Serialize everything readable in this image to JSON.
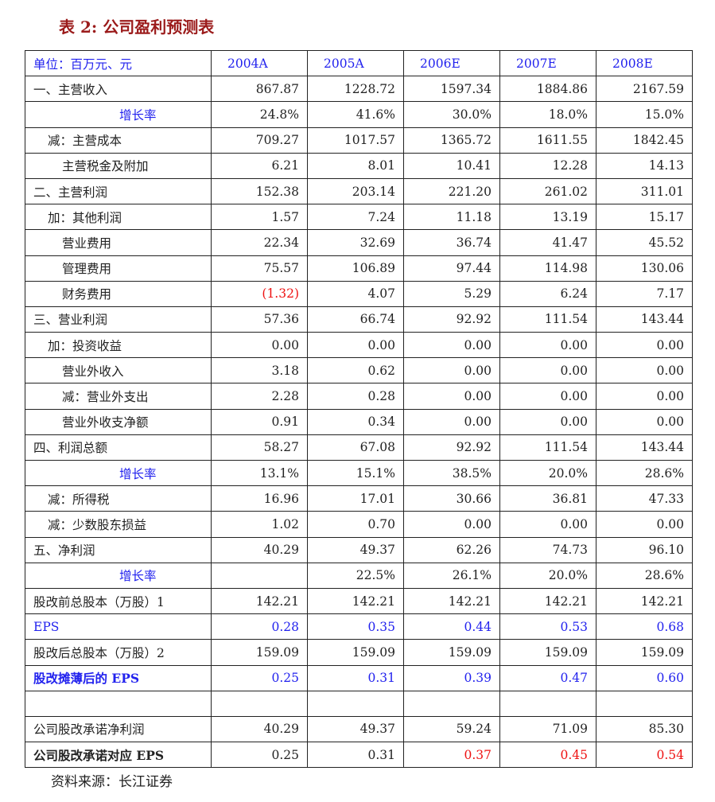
{
  "title": "表 2:  公司盈利预测表",
  "header": {
    "unit_label": "单位：百万元、元",
    "years": [
      "2004A",
      "2005A",
      "2006E",
      "2007E",
      "2008E"
    ]
  },
  "rows": [
    {
      "label": "一、主营收入",
      "indent": 0,
      "values": [
        "867.87",
        "1228.72",
        "1597.34",
        "1884.86",
        "2167.59"
      ]
    },
    {
      "label": "增长率",
      "indent": "g",
      "values": [
        "24.8%",
        "41.6%",
        "30.0%",
        "18.0%",
        "15.0%"
      ]
    },
    {
      "label": "减：主营成本",
      "indent": 1,
      "values": [
        "709.27",
        "1017.57",
        "1365.72",
        "1611.55",
        "1842.45"
      ]
    },
    {
      "label": "主营税金及附加",
      "indent": 2,
      "values": [
        "6.21",
        "8.01",
        "10.41",
        "12.28",
        "14.13"
      ]
    },
    {
      "label": "二、主营利润",
      "indent": 0,
      "values": [
        "152.38",
        "203.14",
        "221.20",
        "261.02",
        "311.01"
      ]
    },
    {
      "label": "加：其他利润",
      "indent": 1,
      "values": [
        "1.57",
        "7.24",
        "11.18",
        "13.19",
        "15.17"
      ]
    },
    {
      "label": "营业费用",
      "indent": 2,
      "values": [
        "22.34",
        "32.69",
        "36.74",
        "41.47",
        "45.52"
      ]
    },
    {
      "label": "管理费用",
      "indent": 2,
      "values": [
        "75.57",
        "106.89",
        "97.44",
        "114.98",
        "130.06"
      ]
    },
    {
      "label": "财务费用",
      "indent": 2,
      "values": [
        "(1.32)",
        "4.07",
        "5.29",
        "6.24",
        "7.17"
      ],
      "value_colors": [
        "red",
        "",
        "",
        "",
        ""
      ]
    },
    {
      "label": "三、营业利润",
      "indent": 0,
      "values": [
        "57.36",
        "66.74",
        "92.92",
        "111.54",
        "143.44"
      ]
    },
    {
      "label": "加：投资收益",
      "indent": 1,
      "values": [
        "0.00",
        "0.00",
        "0.00",
        "0.00",
        "0.00"
      ]
    },
    {
      "label": "营业外收入",
      "indent": 2,
      "values": [
        "3.18",
        "0.62",
        "0.00",
        "0.00",
        "0.00"
      ]
    },
    {
      "label": "减：营业外支出",
      "indent": 2,
      "values": [
        "2.28",
        "0.28",
        "0.00",
        "0.00",
        "0.00"
      ]
    },
    {
      "label": "营业外收支净额",
      "indent": 2,
      "values": [
        "0.91",
        "0.34",
        "0.00",
        "0.00",
        "0.00"
      ]
    },
    {
      "label": "四、利润总额",
      "indent": 0,
      "values": [
        "58.27",
        "67.08",
        "92.92",
        "111.54",
        "143.44"
      ]
    },
    {
      "label": "增长率",
      "indent": "g",
      "values": [
        "13.1%",
        "15.1%",
        "38.5%",
        "20.0%",
        "28.6%"
      ]
    },
    {
      "label": "减：所得税",
      "indent": 1,
      "values": [
        "16.96",
        "17.01",
        "30.66",
        "36.81",
        "47.33"
      ]
    },
    {
      "label": "减：少数股东损益",
      "indent": 1,
      "values": [
        "1.02",
        "0.70",
        "0.00",
        "0.00",
        "0.00"
      ]
    },
    {
      "label": "五、净利润",
      "indent": 0,
      "values": [
        "40.29",
        "49.37",
        "62.26",
        "74.73",
        "96.10"
      ]
    },
    {
      "label": "增长率",
      "indent": "g",
      "values": [
        "",
        "22.5%",
        "26.1%",
        "20.0%",
        "28.6%"
      ]
    },
    {
      "label": "股改前总股本（万股）1",
      "indent": 0,
      "values": [
        "142.21",
        "142.21",
        "142.21",
        "142.21",
        "142.21"
      ]
    },
    {
      "label": "EPS",
      "indent": 0,
      "style": "blue",
      "values": [
        "0.28",
        "0.35",
        "0.44",
        "0.53",
        "0.68"
      ]
    },
    {
      "label": "股改后总股本（万股）2",
      "indent": 0,
      "values": [
        "159.09",
        "159.09",
        "159.09",
        "159.09",
        "159.09"
      ]
    },
    {
      "label": "股改摊薄后的 EPS",
      "indent": 0,
      "style": "blue bold",
      "values": [
        "0.25",
        "0.31",
        "0.39",
        "0.47",
        "0.60"
      ]
    },
    {
      "label": "",
      "indent": 0,
      "values": [
        "",
        "",
        "",
        "",
        ""
      ]
    },
    {
      "label": "公司股改承诺净利润",
      "indent": 0,
      "values": [
        "40.29",
        "49.37",
        "59.24",
        "71.09",
        "85.30"
      ]
    },
    {
      "label": "公司股改承诺对应 EPS",
      "indent": 0,
      "style": "bold-label",
      "values": [
        "0.25",
        "0.31",
        "0.37",
        "0.45",
        "0.54"
      ],
      "value_colors": [
        "",
        "",
        "red",
        "red",
        "red"
      ]
    }
  ],
  "source": "资料来源：长江证券",
  "colors": {
    "title": "#9b1b1b",
    "blue": "#2222ee",
    "red": "#ee1111"
  }
}
